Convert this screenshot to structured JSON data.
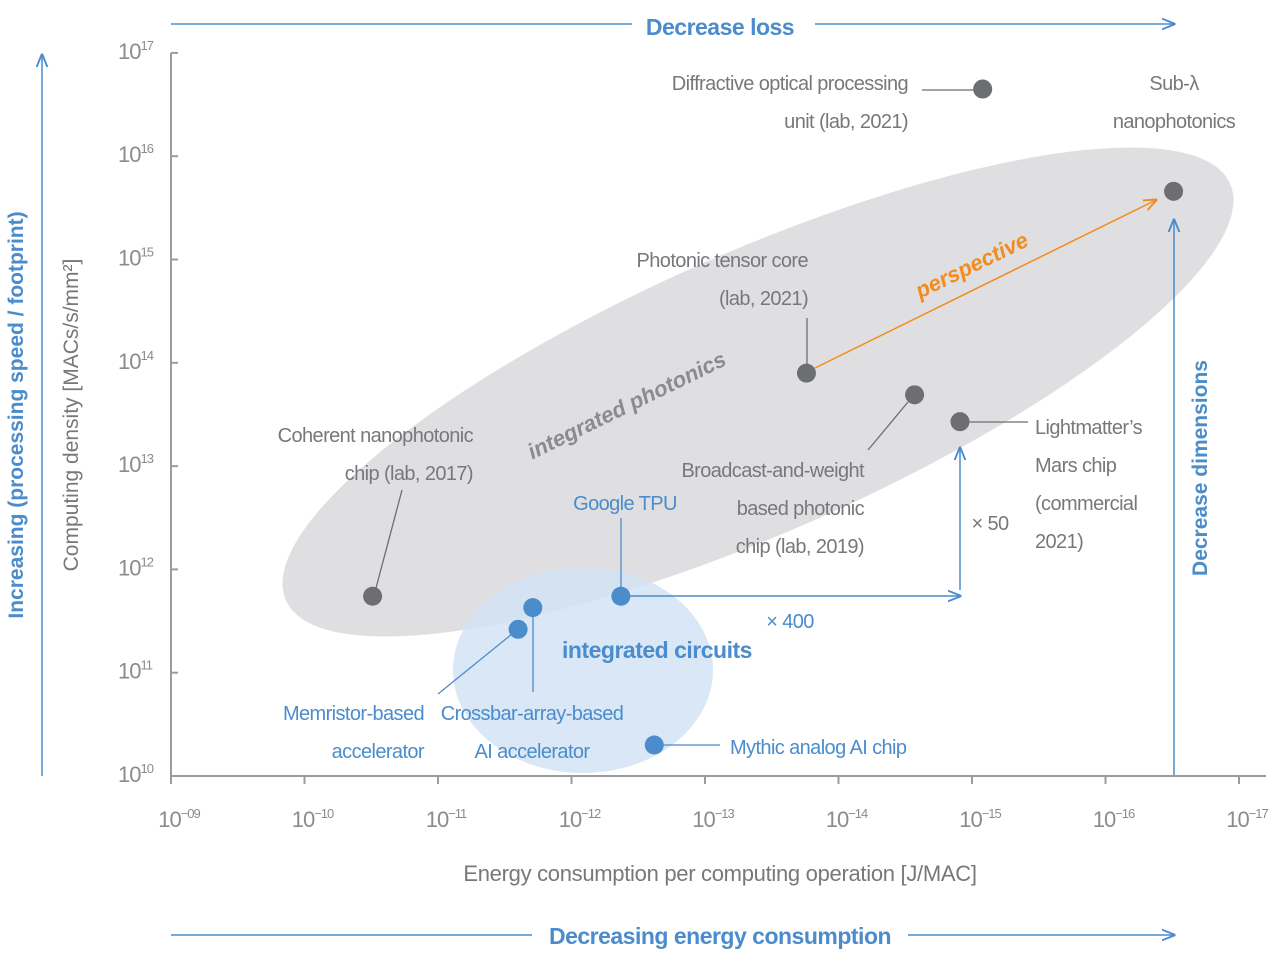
{
  "chart_data": {
    "type": "scatter",
    "title": "",
    "xlabel": "Energy consumption per computing operation [J/MAC]",
    "ylabel": "Computing density [MACs/s/mm²]",
    "x_scale": "log (reversed)",
    "y_scale": "log",
    "xlim_exponent": [
      -9,
      -17
    ],
    "ylim_exponent": [
      10,
      17
    ],
    "x_ticks": [
      {
        "base": "10",
        "exp": "−09"
      },
      {
        "base": "10",
        "exp": "−10"
      },
      {
        "base": "10",
        "exp": "−11"
      },
      {
        "base": "10",
        "exp": "−12"
      },
      {
        "base": "10",
        "exp": "−13"
      },
      {
        "base": "10",
        "exp": "−14"
      },
      {
        "base": "10",
        "exp": "−15"
      },
      {
        "base": "10",
        "exp": "−16"
      },
      {
        "base": "10",
        "exp": "−17"
      }
    ],
    "y_ticks": [
      {
        "base": "10",
        "exp": "10"
      },
      {
        "base": "10",
        "exp": "11"
      },
      {
        "base": "10",
        "exp": "12"
      },
      {
        "base": "10",
        "exp": "13"
      },
      {
        "base": "10",
        "exp": "14"
      },
      {
        "base": "10",
        "exp": "15"
      },
      {
        "base": "10",
        "exp": "16"
      },
      {
        "base": "10",
        "exp": "17"
      }
    ],
    "points": [
      {
        "id": "coherent",
        "group": "photonics",
        "x_exp": -10.51,
        "y_exp": 11.74,
        "label": [
          "Coherent nanophotonic",
          "chip (lab, 2017)"
        ]
      },
      {
        "id": "memristor",
        "group": "circuits",
        "x_exp": -11.6,
        "y_exp": 11.42,
        "label": [
          "Memristor-based",
          "accelerator"
        ]
      },
      {
        "id": "crossbar",
        "group": "circuits",
        "x_exp": -11.71,
        "y_exp": 11.63,
        "label": [
          "Crossbar-array-based",
          "AI accelerator"
        ]
      },
      {
        "id": "tpu",
        "group": "circuits",
        "x_exp": -12.37,
        "y_exp": 11.74,
        "label": [
          "Google TPU"
        ]
      },
      {
        "id": "mythic",
        "group": "circuits",
        "x_exp": -12.62,
        "y_exp": 10.3,
        "label": [
          "Mythic analog AI chip"
        ]
      },
      {
        "id": "tensor",
        "group": "photonics",
        "x_exp": -13.76,
        "y_exp": 13.9,
        "label": [
          "Photonic tensor core",
          "(lab, 2021)"
        ]
      },
      {
        "id": "broadcast",
        "group": "photonics",
        "x_exp": -14.57,
        "y_exp": 13.69,
        "label": [
          "Broadcast-and-weight",
          "based photonic",
          "chip (lab, 2019)"
        ]
      },
      {
        "id": "lightmatter",
        "group": "photonics",
        "x_exp": -14.91,
        "y_exp": 13.43,
        "label": [
          "Lightmatter’s",
          "Mars chip",
          "(commercial",
          "2021)"
        ]
      },
      {
        "id": "diffractive",
        "group": "photonics",
        "x_exp": -15.08,
        "y_exp": 16.65,
        "label": [
          "Diffractive optical processing",
          "unit (lab, 2021)"
        ]
      },
      {
        "id": "sublambda",
        "group": "photonics",
        "x_exp": -16.51,
        "y_exp": 15.66,
        "label": [
          "Sub-λ",
          "nanophotonics"
        ]
      }
    ],
    "regions": {
      "photonics": "integrated photonics",
      "circuits": "integrated circuits"
    },
    "annotations": {
      "perspective": "perspective",
      "factor_energy": "× 400",
      "factor_density": "× 50",
      "top_arrow": "Decrease loss",
      "bottom_arrow": "Decreasing energy consumption",
      "left_arrow": "Increasing (processing speed / footprint)",
      "right_arrow": "Decrease dimensions"
    },
    "colors": {
      "photonics_point": "#6d6e71",
      "circuits_point": "#4a8ccc",
      "photonics_region": "#dfdfe1",
      "circuits_region": "#d3e3f4",
      "accent": "#4a8ccc",
      "perspective": "#f28c1e",
      "text": "#77787b"
    }
  }
}
